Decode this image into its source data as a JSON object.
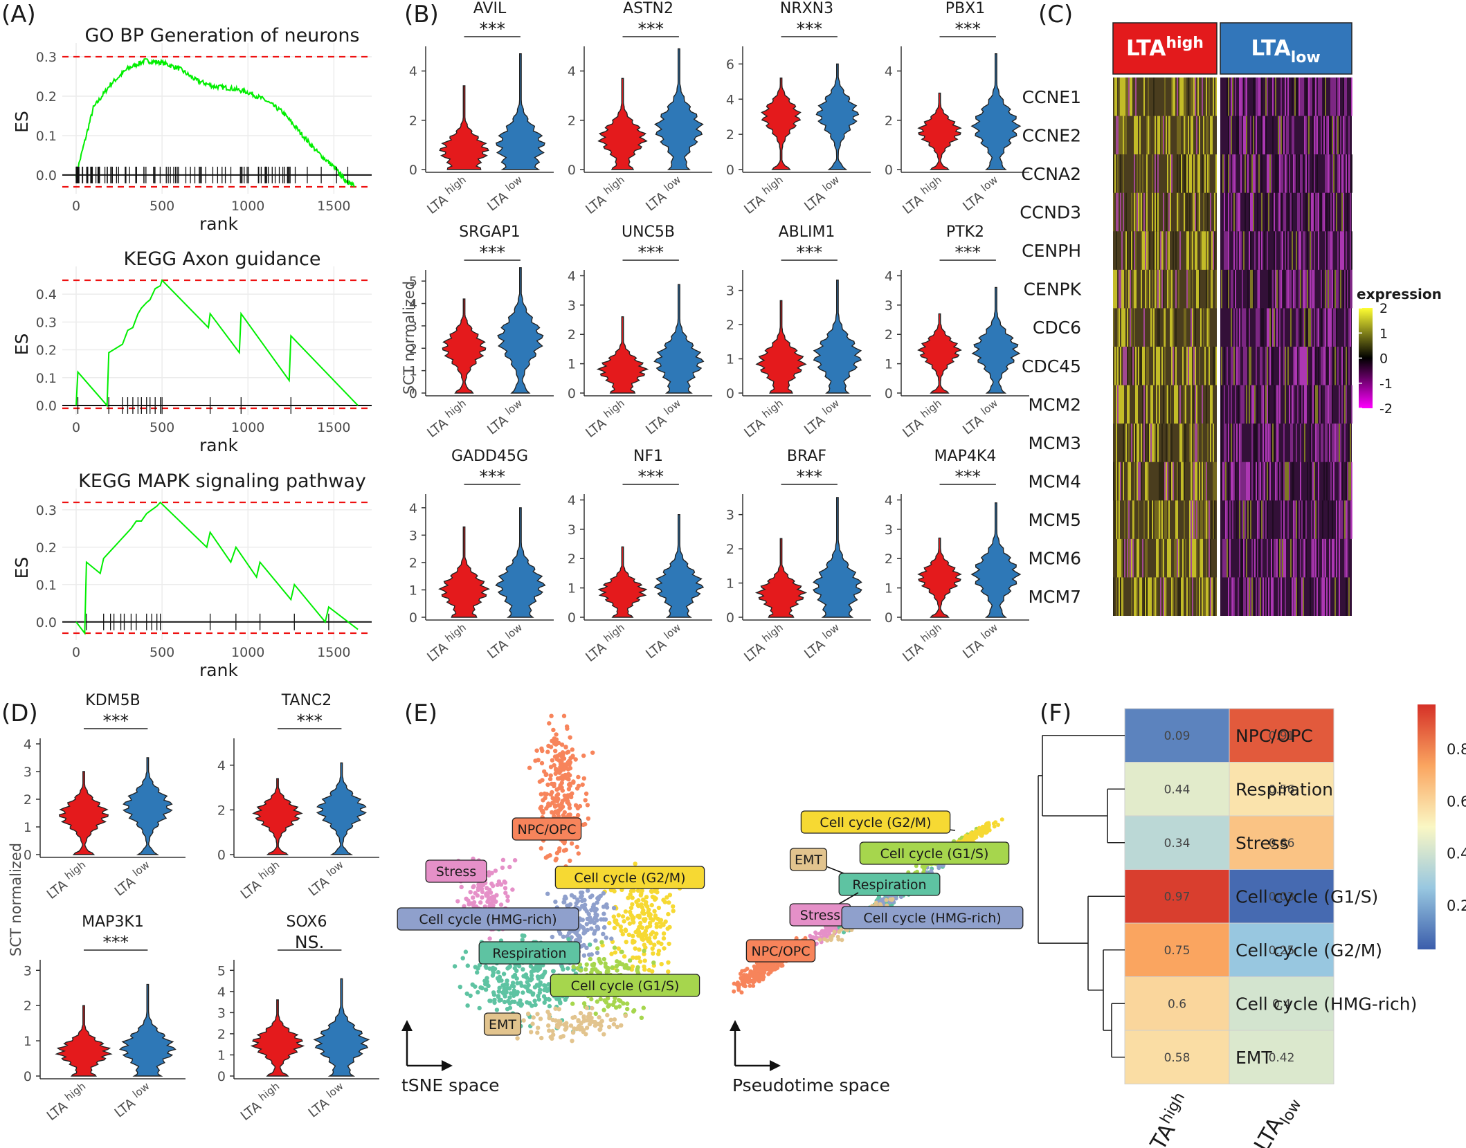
{
  "colors": {
    "high": "#e41a1c",
    "low": "#2e78b7",
    "gsea_line": "#00ee00",
    "gsea_ref": "#ee1111",
    "heat_high_label": "#e31a1c",
    "heat_low_label": "#3276ba"
  },
  "panels": {
    "A": {
      "letter": "(A)"
    },
    "B": {
      "letter": "(B)"
    },
    "C": {
      "letter": "(C)"
    },
    "D": {
      "letter": "(D)"
    },
    "E": {
      "letter": "(E)"
    },
    "F": {
      "letter": "(F)"
    }
  },
  "labels": {
    "es": "ES",
    "rank": "rank",
    "sct": "SCT normalized",
    "sig": "***",
    "ns": "NS.",
    "lta": "LTA",
    "high": "high",
    "low": "low",
    "tsne": "tSNE space",
    "pseudotime": "Pseudotime space"
  },
  "chart_data": [
    {
      "id": "A",
      "type": "line",
      "xlabel": "rank",
      "ylabel": "ES",
      "xticks": [
        0,
        500,
        1000,
        1500
      ],
      "grid": true,
      "subplots": [
        {
          "title": "GO BP Generation of neurons",
          "ylim": [
            -0.03,
            0.3
          ],
          "yticks": [
            0.0,
            0.1,
            0.2,
            0.3
          ],
          "ref_lines": [
            0.3,
            -0.03
          ],
          "kind": "dense",
          "x": [
            0,
            100,
            200,
            300,
            400,
            500,
            600,
            700,
            800,
            900,
            1000,
            1100,
            1200,
            1300,
            1400,
            1500,
            1560,
            1620
          ],
          "y": [
            0.0,
            0.17,
            0.23,
            0.27,
            0.29,
            0.285,
            0.27,
            0.24,
            0.225,
            0.22,
            0.21,
            0.19,
            0.16,
            0.11,
            0.06,
            0.02,
            -0.01,
            -0.03
          ]
        },
        {
          "title": "KEGG Axon guidance",
          "ylim": [
            -0.01,
            0.45
          ],
          "yticks": [
            0.0,
            0.1,
            0.2,
            0.3,
            0.4
          ],
          "ref_lines": [
            0.45,
            -0.01
          ],
          "kind": "step",
          "x": [
            0,
            10,
            180,
            190,
            270,
            300,
            330,
            360,
            380,
            410,
            430,
            460,
            490,
            500,
            770,
            780,
            950,
            960,
            1240,
            1250,
            1640
          ],
          "y": [
            0.0,
            0.12,
            0.0,
            0.19,
            0.22,
            0.27,
            0.28,
            0.33,
            0.35,
            0.37,
            0.38,
            0.42,
            0.43,
            0.45,
            0.28,
            0.33,
            0.19,
            0.33,
            0.09,
            0.25,
            0.0
          ]
        },
        {
          "title": "KEGG MAPK signaling pathway",
          "ylim": [
            -0.03,
            0.32
          ],
          "yticks": [
            0.0,
            0.1,
            0.2,
            0.3
          ],
          "ref_lines": [
            0.32,
            -0.03
          ],
          "kind": "step",
          "x": [
            0,
            50,
            60,
            140,
            160,
            200,
            220,
            260,
            280,
            320,
            350,
            380,
            410,
            440,
            470,
            490,
            760,
            780,
            900,
            930,
            1050,
            1070,
            1250,
            1270,
            1450,
            1470,
            1640
          ],
          "y": [
            0.0,
            -0.03,
            0.16,
            0.13,
            0.17,
            0.19,
            0.2,
            0.22,
            0.23,
            0.25,
            0.27,
            0.27,
            0.29,
            0.3,
            0.31,
            0.32,
            0.2,
            0.24,
            0.16,
            0.2,
            0.12,
            0.16,
            0.06,
            0.1,
            0.0,
            0.04,
            -0.02
          ]
        }
      ]
    },
    {
      "id": "B",
      "type": "violin",
      "groups": [
        "LTA high",
        "LTA low"
      ],
      "ylabel": "SCT normalized",
      "genes": [
        {
          "name": "AVIL",
          "ymax": 5,
          "yticks": [
            0,
            2,
            4
          ],
          "high_median": 0.8,
          "low_median": 1.0,
          "high_max": 3.4,
          "low_max": 4.7,
          "sig": "***"
        },
        {
          "name": "ASTN2",
          "ymax": 5,
          "yticks": [
            0,
            2,
            4
          ],
          "high_median": 1.3,
          "low_median": 1.7,
          "high_max": 3.7,
          "low_max": 4.9,
          "sig": "***"
        },
        {
          "name": "NRXN3",
          "ymax": 7,
          "yticks": [
            0,
            2,
            4,
            6
          ],
          "high_median": 3.2,
          "low_median": 3.3,
          "high_max": 5.2,
          "low_max": 6.0,
          "sig": "***"
        },
        {
          "name": "PBX1",
          "ymax": 5,
          "yticks": [
            0,
            2,
            4
          ],
          "high_median": 1.6,
          "low_median": 1.8,
          "high_max": 3.1,
          "low_max": 4.7,
          "sig": "***"
        },
        {
          "name": "SRGAP1",
          "ymax": 5.5,
          "yticks": [
            0,
            1,
            2,
            3,
            4,
            5
          ],
          "high_median": 2.1,
          "low_median": 2.5,
          "high_max": 4.2,
          "low_max": 5.6,
          "sig": "***"
        },
        {
          "name": "UNC5B",
          "ymax": 4.2,
          "yticks": [
            0,
            1,
            2,
            3,
            4
          ],
          "high_median": 0.8,
          "low_median": 1.1,
          "high_max": 2.6,
          "low_max": 3.7,
          "sig": "***"
        },
        {
          "name": "ABLIM1",
          "ymax": 3.6,
          "yticks": [
            0,
            1,
            2,
            3
          ],
          "high_median": 0.9,
          "low_median": 1.1,
          "high_max": 2.7,
          "low_max": 3.3,
          "sig": "***"
        },
        {
          "name": "PTK2",
          "ymax": 4.2,
          "yticks": [
            0,
            1,
            2,
            3,
            4
          ],
          "high_median": 1.5,
          "low_median": 1.5,
          "high_max": 2.7,
          "low_max": 3.6,
          "sig": "***"
        },
        {
          "name": "GADD45G",
          "ymax": 4.5,
          "yticks": [
            0,
            1,
            2,
            3,
            4
          ],
          "high_median": 1.0,
          "low_median": 1.2,
          "high_max": 3.3,
          "low_max": 4.0,
          "sig": "***"
        },
        {
          "name": "NF1",
          "ymax": 4.2,
          "yticks": [
            0,
            1,
            2,
            3,
            4
          ],
          "high_median": 0.9,
          "low_median": 1.1,
          "high_max": 2.4,
          "low_max": 3.5,
          "sig": "***"
        },
        {
          "name": "BRAF",
          "ymax": 3.6,
          "yticks": [
            0,
            1,
            2,
            3
          ],
          "high_median": 0.7,
          "low_median": 0.9,
          "high_max": 2.3,
          "low_max": 3.5,
          "sig": "***"
        },
        {
          "name": "MAP4K4",
          "ymax": 4.2,
          "yticks": [
            0,
            1,
            2,
            3,
            4
          ],
          "high_median": 1.4,
          "low_median": 1.5,
          "high_max": 2.7,
          "low_max": 3.9,
          "sig": "***"
        }
      ]
    },
    {
      "id": "C",
      "type": "heatmap",
      "col_groups": [
        "LTA high",
        "LTA low"
      ],
      "rows": [
        "CCNE1",
        "CCNE2",
        "CCNA2",
        "CCND3",
        "CENPH",
        "CENPK",
        "CDC6",
        "CDC45",
        "MCM2",
        "MCM3",
        "MCM4",
        "MCM5",
        "MCM6",
        "MCM7"
      ],
      "legend_title": "expression",
      "legend_ticks": [
        2,
        1,
        0,
        -1,
        -2
      ],
      "legend_tick_labels": [
        "2",
        "1",
        "0",
        "-1",
        "-2"
      ],
      "colors": [
        "#ffff33",
        "#000000",
        "#ff00ff"
      ]
    },
    {
      "id": "D",
      "type": "violin",
      "groups": [
        "LTA high",
        "LTA low"
      ],
      "ylabel": "SCT normalized",
      "genes": [
        {
          "name": "KDM5B",
          "ymax": 4.2,
          "yticks": [
            0,
            1,
            2,
            3,
            4
          ],
          "high_median": 1.5,
          "low_median": 1.8,
          "high_max": 3.0,
          "low_max": 3.5,
          "sig": "***"
        },
        {
          "name": "TANC2",
          "ymax": 5.2,
          "yticks": [
            0,
            2,
            4
          ],
          "high_median": 1.9,
          "low_median": 2.1,
          "high_max": 3.4,
          "low_max": 4.1,
          "sig": "***"
        },
        {
          "name": "MAP3K1",
          "ymax": 3.3,
          "yticks": [
            0,
            1,
            2,
            3
          ],
          "high_median": 0.7,
          "low_median": 0.8,
          "high_max": 2.0,
          "low_max": 2.6,
          "sig": "***"
        },
        {
          "name": "SOX6",
          "ymax": 5.5,
          "yticks": [
            0,
            1,
            2,
            3,
            4,
            5
          ],
          "high_median": 1.6,
          "low_median": 1.6,
          "high_max": 3.6,
          "low_max": 4.6,
          "sig": "NS."
        }
      ]
    },
    {
      "id": "E",
      "type": "scatter",
      "spaces": [
        "tSNE space",
        "Pseudotime space"
      ],
      "clusters": [
        {
          "name": "NPC/OPC",
          "color": "#f7845b"
        },
        {
          "name": "Stress",
          "color": "#e590c8"
        },
        {
          "name": "Cell cycle (G2/M)",
          "color": "#f6d933"
        },
        {
          "name": "Cell cycle (HMG-rich)",
          "color": "#8fa0cc"
        },
        {
          "name": "Respiration",
          "color": "#5ec3a2"
        },
        {
          "name": "Cell cycle (G1/S)",
          "color": "#a6d64d"
        },
        {
          "name": "EMT",
          "color": "#e2c48e"
        }
      ]
    },
    {
      "id": "F",
      "type": "heatmap",
      "columns": [
        "LTA high",
        "LTA low"
      ],
      "rows": [
        "NPC/OPC",
        "Respiration",
        "Stress",
        "Cell cycle (G1/S)",
        "Cell cycle (G2/M)",
        "Cell cycle (HMG-rich)",
        "EMT"
      ],
      "values": [
        [
          0.09,
          0.91
        ],
        [
          0.44,
          0.56
        ],
        [
          0.34,
          0.66
        ],
        [
          0.97,
          0.03
        ],
        [
          0.75,
          0.25
        ],
        [
          0.6,
          0.4
        ],
        [
          0.58,
          0.42
        ]
      ],
      "legend_ticks": [
        0.2,
        0.4,
        0.6,
        0.8
      ],
      "legend_tick_labels": [
        "0.2",
        "0.4",
        "0.6",
        "0.8"
      ],
      "dendrogram": "rows"
    }
  ]
}
